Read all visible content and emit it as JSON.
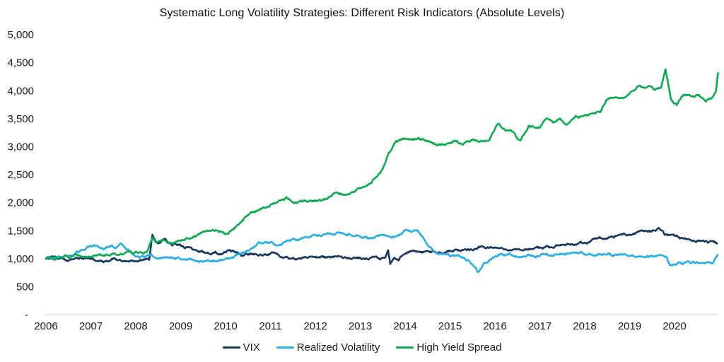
{
  "chart_data": {
    "type": "line",
    "title": "Systematic Long Volatility Strategies: Different Risk Indicators (Absolute Levels)",
    "xlabel": "",
    "ylabel": "",
    "grid": false,
    "legend_position": "bottom",
    "x_axis": {
      "range": [
        2006,
        2021
      ],
      "ticks": [
        {
          "label": "2006",
          "value": 2006
        },
        {
          "label": "2007",
          "value": 2007
        },
        {
          "label": "2008",
          "value": 2008
        },
        {
          "label": "2009",
          "value": 2009
        },
        {
          "label": "2010",
          "value": 2010
        },
        {
          "label": "2011",
          "value": 2011
        },
        {
          "label": "2012",
          "value": 2012
        },
        {
          "label": "2013",
          "value": 2013
        },
        {
          "label": "2014",
          "value": 2014
        },
        {
          "label": "2015",
          "value": 2015
        },
        {
          "label": "2016",
          "value": 2016
        },
        {
          "label": "2017",
          "value": 2017
        },
        {
          "label": "2018",
          "value": 2018
        },
        {
          "label": "2019",
          "value": 2019
        },
        {
          "label": "2020",
          "value": 2020
        }
      ]
    },
    "y_axis": {
      "range": [
        0,
        5000
      ],
      "ticks": [
        {
          "label": "5,000",
          "value": 5000
        },
        {
          "label": "4,500",
          "value": 4500
        },
        {
          "label": "4,000",
          "value": 4000
        },
        {
          "label": "3,500",
          "value": 3500
        },
        {
          "label": "3,000",
          "value": 3000
        },
        {
          "label": "2,500",
          "value": 2500
        },
        {
          "label": "2,000",
          "value": 2000
        },
        {
          "label": "1,500",
          "value": 1500
        },
        {
          "label": "1,000",
          "value": 1000
        },
        {
          "label": "500",
          "value": 500
        },
        {
          "label": "-",
          "value": 0
        }
      ]
    },
    "series": [
      {
        "name": "VIX",
        "color": "#17375d",
        "points": [
          [
            2006.0,
            1000
          ],
          [
            2006.2,
            1010
          ],
          [
            2006.5,
            985
          ],
          [
            2006.8,
            1000
          ],
          [
            2007.0,
            1012
          ],
          [
            2007.12,
            955
          ],
          [
            2007.3,
            942
          ],
          [
            2007.5,
            975
          ],
          [
            2007.75,
            958
          ],
          [
            2008.0,
            945
          ],
          [
            2008.2,
            978
          ],
          [
            2008.3,
            995
          ],
          [
            2008.37,
            1430
          ],
          [
            2008.45,
            1305
          ],
          [
            2008.55,
            1285
          ],
          [
            2008.65,
            1330
          ],
          [
            2008.8,
            1262
          ],
          [
            2009.0,
            1240
          ],
          [
            2009.3,
            1140
          ],
          [
            2009.6,
            1100
          ],
          [
            2009.95,
            1075
          ],
          [
            2010.08,
            1160
          ],
          [
            2010.25,
            1095
          ],
          [
            2010.4,
            1050
          ],
          [
            2010.6,
            1078
          ],
          [
            2010.8,
            1060
          ],
          [
            2011.0,
            1092
          ],
          [
            2011.3,
            1045
          ],
          [
            2011.6,
            990
          ],
          [
            2011.9,
            1032
          ],
          [
            2012.2,
            1010
          ],
          [
            2012.5,
            1032
          ],
          [
            2012.8,
            992
          ],
          [
            2013.05,
            1008
          ],
          [
            2013.3,
            1005
          ],
          [
            2013.55,
            1000
          ],
          [
            2013.62,
            1160
          ],
          [
            2013.67,
            905
          ],
          [
            2013.75,
            1000
          ],
          [
            2013.85,
            988
          ],
          [
            2014.0,
            1100
          ],
          [
            2014.15,
            1145
          ],
          [
            2014.3,
            1121
          ],
          [
            2014.5,
            1109
          ],
          [
            2014.75,
            1121
          ],
          [
            2015.05,
            1134
          ],
          [
            2015.2,
            1147
          ],
          [
            2015.5,
            1160
          ],
          [
            2015.7,
            1198
          ],
          [
            2016.0,
            1220
          ],
          [
            2016.3,
            1195
          ],
          [
            2016.5,
            1148
          ],
          [
            2016.75,
            1172
          ],
          [
            2017.0,
            1185
          ],
          [
            2017.25,
            1212
          ],
          [
            2017.5,
            1225
          ],
          [
            2017.8,
            1242
          ],
          [
            2018.2,
            1322
          ],
          [
            2018.6,
            1372
          ],
          [
            2019.0,
            1425
          ],
          [
            2019.3,
            1462
          ],
          [
            2019.5,
            1478
          ],
          [
            2019.66,
            1540
          ],
          [
            2019.78,
            1432
          ],
          [
            2019.95,
            1415
          ],
          [
            2020.15,
            1362
          ],
          [
            2020.45,
            1330
          ],
          [
            2020.7,
            1295
          ],
          [
            2020.95,
            1262
          ]
        ]
      },
      {
        "name": "Realized Volatility",
        "color": "#2bacе3",
        "points": [
          [
            2006.0,
            1000
          ],
          [
            2006.3,
            1022
          ],
          [
            2006.6,
            1062
          ],
          [
            2006.85,
            1180
          ],
          [
            2007.0,
            1228
          ],
          [
            2007.15,
            1242
          ],
          [
            2007.28,
            1162
          ],
          [
            2007.42,
            1212
          ],
          [
            2007.55,
            1190
          ],
          [
            2007.68,
            1238
          ],
          [
            2007.8,
            1150
          ],
          [
            2008.0,
            1052
          ],
          [
            2008.2,
            1032
          ],
          [
            2008.35,
            1062
          ],
          [
            2008.5,
            1012
          ],
          [
            2008.7,
            1000
          ],
          [
            2008.9,
            1012
          ],
          [
            2009.1,
            975
          ],
          [
            2009.4,
            955
          ],
          [
            2009.7,
            965
          ],
          [
            2010.0,
            978
          ],
          [
            2010.25,
            1035
          ],
          [
            2010.5,
            1120
          ],
          [
            2010.75,
            1272
          ],
          [
            2011.0,
            1300
          ],
          [
            2011.2,
            1222
          ],
          [
            2011.4,
            1312
          ],
          [
            2011.7,
            1360
          ],
          [
            2012.0,
            1402
          ],
          [
            2012.3,
            1432
          ],
          [
            2012.6,
            1452
          ],
          [
            2012.9,
            1440
          ],
          [
            2013.05,
            1390
          ],
          [
            2013.25,
            1348
          ],
          [
            2013.5,
            1412
          ],
          [
            2013.8,
            1386
          ],
          [
            2014.0,
            1490
          ],
          [
            2014.15,
            1478
          ],
          [
            2014.3,
            1472
          ],
          [
            2014.5,
            1260
          ],
          [
            2014.7,
            1096
          ],
          [
            2014.9,
            1071
          ],
          [
            2015.2,
            1033
          ],
          [
            2015.35,
            985
          ],
          [
            2015.5,
            900
          ],
          [
            2015.62,
            755
          ],
          [
            2015.75,
            905
          ],
          [
            2015.92,
            1012
          ],
          [
            2016.1,
            1072
          ],
          [
            2016.35,
            1055
          ],
          [
            2016.6,
            1035
          ],
          [
            2016.85,
            1050
          ],
          [
            2017.1,
            1062
          ],
          [
            2017.4,
            1095
          ],
          [
            2017.7,
            1085
          ],
          [
            2018.0,
            1080
          ],
          [
            2018.35,
            1068
          ],
          [
            2018.7,
            1058
          ],
          [
            2019.05,
            1045
          ],
          [
            2019.4,
            1042
          ],
          [
            2019.72,
            1030
          ],
          [
            2019.83,
            1008
          ],
          [
            2019.9,
            880
          ],
          [
            2020.1,
            915
          ],
          [
            2020.4,
            922
          ],
          [
            2020.7,
            932
          ],
          [
            2020.87,
            952
          ],
          [
            2020.96,
            1065
          ]
        ]
      },
      {
        "name": "High Yield Spread",
        "color": "#12a853",
        "points": [
          [
            2006.0,
            1000
          ],
          [
            2006.3,
            1015
          ],
          [
            2006.6,
            1032
          ],
          [
            2007.0,
            1048
          ],
          [
            2007.4,
            1075
          ],
          [
            2007.8,
            1095
          ],
          [
            2008.05,
            1102
          ],
          [
            2008.25,
            1122
          ],
          [
            2008.37,
            1352
          ],
          [
            2008.47,
            1282
          ],
          [
            2008.6,
            1312
          ],
          [
            2008.8,
            1292
          ],
          [
            2009.0,
            1302
          ],
          [
            2009.3,
            1412
          ],
          [
            2009.6,
            1512
          ],
          [
            2009.8,
            1495
          ],
          [
            2010.0,
            1432
          ],
          [
            2010.2,
            1542
          ],
          [
            2010.5,
            1765
          ],
          [
            2010.75,
            1842
          ],
          [
            2011.0,
            1950
          ],
          [
            2011.35,
            2082
          ],
          [
            2011.55,
            1982
          ],
          [
            2011.9,
            2022
          ],
          [
            2012.2,
            2042
          ],
          [
            2012.5,
            2182
          ],
          [
            2012.7,
            2122
          ],
          [
            2013.0,
            2272
          ],
          [
            2013.2,
            2332
          ],
          [
            2013.35,
            2462
          ],
          [
            2013.5,
            2582
          ],
          [
            2013.62,
            2842
          ],
          [
            2013.8,
            3092
          ],
          [
            2013.95,
            3128
          ],
          [
            2014.2,
            3152
          ],
          [
            2014.45,
            3098
          ],
          [
            2014.65,
            3058
          ],
          [
            2014.9,
            3028
          ],
          [
            2015.08,
            3092
          ],
          [
            2015.28,
            3052
          ],
          [
            2015.5,
            3112
          ],
          [
            2015.7,
            3088
          ],
          [
            2015.88,
            3118
          ],
          [
            2016.07,
            3402
          ],
          [
            2016.2,
            3302
          ],
          [
            2016.4,
            3242
          ],
          [
            2016.57,
            3092
          ],
          [
            2016.75,
            3342
          ],
          [
            2017.0,
            3362
          ],
          [
            2017.15,
            3528
          ],
          [
            2017.3,
            3432
          ],
          [
            2017.45,
            3482
          ],
          [
            2017.6,
            3382
          ],
          [
            2017.8,
            3568
          ],
          [
            2017.97,
            3532
          ],
          [
            2018.2,
            3598
          ],
          [
            2018.35,
            3618
          ],
          [
            2018.48,
            3822
          ],
          [
            2018.75,
            3872
          ],
          [
            2018.9,
            3858
          ],
          [
            2019.1,
            4012
          ],
          [
            2019.22,
            4112
          ],
          [
            2019.33,
            4062
          ],
          [
            2019.45,
            4082
          ],
          [
            2019.57,
            4012
          ],
          [
            2019.7,
            4062
          ],
          [
            2019.8,
            4392
          ],
          [
            2019.92,
            3812
          ],
          [
            2020.05,
            3722
          ],
          [
            2020.2,
            3908
          ],
          [
            2020.38,
            3882
          ],
          [
            2020.55,
            3908
          ],
          [
            2020.7,
            3822
          ],
          [
            2020.82,
            3862
          ],
          [
            2020.92,
            3948
          ],
          [
            2020.97,
            4312
          ]
        ]
      }
    ]
  }
}
